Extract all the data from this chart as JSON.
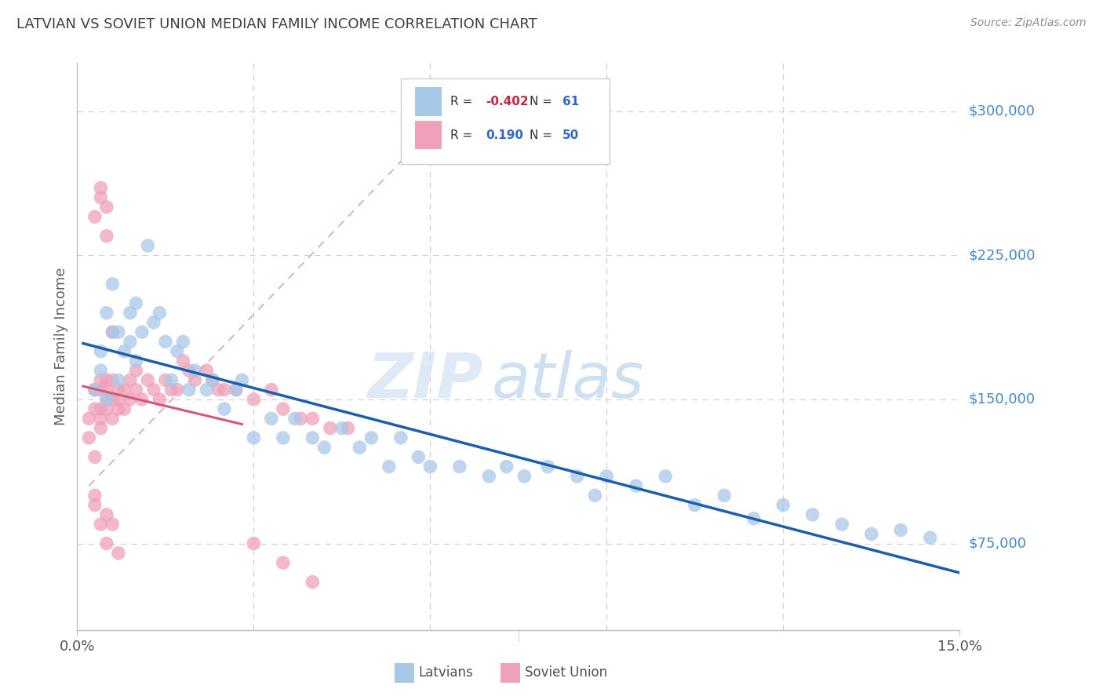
{
  "title": "LATVIAN VS SOVIET UNION MEDIAN FAMILY INCOME CORRELATION CHART",
  "source": "Source: ZipAtlas.com",
  "ylabel": "Median Family Income",
  "xlim": [
    0.0,
    0.15
  ],
  "ylim": [
    30000,
    325000
  ],
  "latvians_color": "#a8c8e8",
  "soviet_color": "#f0a0b8",
  "latvians_line_color": "#1a5fad",
  "soviet_line_color": "#d05878",
  "ref_line_color": "#d090a0",
  "legend_R1": "-0.402",
  "legend_N1": "61",
  "legend_R2": "0.190",
  "legend_N2": "50",
  "title_color": "#404040",
  "source_color": "#909090",
  "ytick_color": "#4488cc",
  "grid_color": "#d0d0d0",
  "latvians_scatter_x": [
    0.003,
    0.004,
    0.004,
    0.005,
    0.005,
    0.006,
    0.006,
    0.007,
    0.007,
    0.008,
    0.009,
    0.009,
    0.01,
    0.01,
    0.011,
    0.012,
    0.013,
    0.014,
    0.015,
    0.016,
    0.017,
    0.018,
    0.019,
    0.02,
    0.022,
    0.023,
    0.025,
    0.027,
    0.028,
    0.03,
    0.033,
    0.035,
    0.037,
    0.04,
    0.042,
    0.045,
    0.048,
    0.05,
    0.053,
    0.055,
    0.058,
    0.06,
    0.065,
    0.07,
    0.073,
    0.076,
    0.08,
    0.085,
    0.088,
    0.09,
    0.095,
    0.1,
    0.105,
    0.11,
    0.115,
    0.12,
    0.125,
    0.13,
    0.135,
    0.14,
    0.145
  ],
  "latvians_scatter_y": [
    155000,
    165000,
    175000,
    150000,
    195000,
    185000,
    210000,
    160000,
    185000,
    175000,
    195000,
    180000,
    200000,
    170000,
    185000,
    230000,
    190000,
    195000,
    180000,
    160000,
    175000,
    180000,
    155000,
    165000,
    155000,
    160000,
    145000,
    155000,
    160000,
    130000,
    140000,
    130000,
    140000,
    130000,
    125000,
    135000,
    125000,
    130000,
    115000,
    130000,
    120000,
    115000,
    115000,
    110000,
    115000,
    110000,
    115000,
    110000,
    100000,
    110000,
    105000,
    110000,
    95000,
    100000,
    88000,
    95000,
    90000,
    85000,
    80000,
    82000,
    78000
  ],
  "soviet_scatter_x": [
    0.002,
    0.002,
    0.003,
    0.003,
    0.003,
    0.003,
    0.003,
    0.004,
    0.004,
    0.004,
    0.004,
    0.004,
    0.005,
    0.005,
    0.005,
    0.005,
    0.006,
    0.006,
    0.006,
    0.007,
    0.007,
    0.007,
    0.008,
    0.008,
    0.009,
    0.009,
    0.01,
    0.01,
    0.011,
    0.012,
    0.013,
    0.014,
    0.015,
    0.016,
    0.017,
    0.018,
    0.019,
    0.02,
    0.022,
    0.023,
    0.024,
    0.025,
    0.027,
    0.03,
    0.033,
    0.035,
    0.038,
    0.04,
    0.043,
    0.046
  ],
  "soviet_scatter_y": [
    140000,
    130000,
    155000,
    155000,
    145000,
    120000,
    100000,
    145000,
    140000,
    160000,
    155000,
    135000,
    160000,
    150000,
    155000,
    145000,
    150000,
    160000,
    140000,
    150000,
    145000,
    155000,
    145000,
    155000,
    150000,
    160000,
    155000,
    165000,
    150000,
    160000,
    155000,
    150000,
    160000,
    155000,
    155000,
    170000,
    165000,
    160000,
    165000,
    160000,
    155000,
    155000,
    155000,
    150000,
    155000,
    145000,
    140000,
    140000,
    135000,
    135000
  ],
  "soviet_high_x": [
    0.003,
    0.004,
    0.004,
    0.005,
    0.005,
    0.006
  ],
  "soviet_high_y": [
    245000,
    260000,
    255000,
    235000,
    250000,
    185000
  ],
  "soviet_low_x": [
    0.003,
    0.004,
    0.005,
    0.005,
    0.006,
    0.007,
    0.03,
    0.035,
    0.04
  ],
  "soviet_low_y": [
    95000,
    85000,
    75000,
    90000,
    85000,
    70000,
    75000,
    65000,
    55000
  ]
}
